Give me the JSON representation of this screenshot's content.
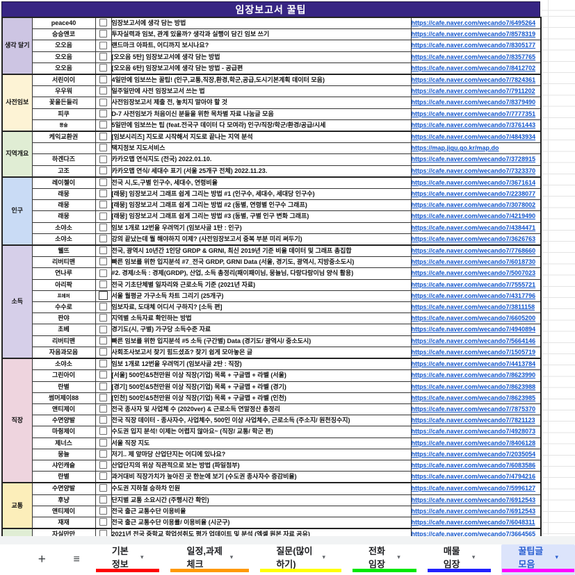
{
  "title": "임장보고서 꿀팁",
  "colors": {
    "header_bg": "#372583",
    "row_gray": "#f2f2f2",
    "highlight_yellow": "#ffff00",
    "link_blue": "#1155cc",
    "active_tab_text": "#2a5fd1",
    "active_tab_bg": "#dce4fb"
  },
  "sections": [
    {
      "label": "생각 달기",
      "bg": "#cdc5e3",
      "rows": [
        {
          "name": "peace40",
          "desc": "임장보고서에 생각 담는 방법",
          "url": "https://cafe.naver.com/wecando7/6495264",
          "gray": true
        },
        {
          "name": "승승앤코",
          "desc": "투자실력과 임보, 관계 있을까? 생각과 실행이 담긴 임보 쓰기",
          "url": "https://cafe.naver.com/wecando7/8578319",
          "gray": true
        },
        {
          "name": "오오음",
          "desc": "랜드마크 아파트, 어디까지 보시나요?",
          "url": "https://cafe.naver.com/wecando7/8305177"
        },
        {
          "name": "오오음",
          "desc": "[오오음 5탄] 임장보고서에 생각 담는 방법",
          "url": "https://cafe.naver.com/wecando7/8357765"
        },
        {
          "name": "오오음",
          "desc": "[오오음 6탄] 임장보고서에 생각 담는 방법 - 공급편",
          "url": "https://cafe.naver.com/wecando7/8412702"
        }
      ]
    },
    {
      "label": "사전임보",
      "bg": "#fdf3d5",
      "rows": [
        {
          "name": "서린이이",
          "desc": "4일만에 임보쓰는 꿀팁! (인구,교통,직장,환경,학군,공급,도시기본계획 데이터 모음)",
          "url": "https://cafe.naver.com/wecando7/7824361",
          "gray": true
        },
        {
          "name": "우우워",
          "desc": "일주일만에 사전 임장보고서 쓰는 법",
          "url": "https://cafe.naver.com/wecando7/7911202"
        },
        {
          "name": "꽃을든들리",
          "desc": "사전임장보고서 제출 전, 놓치지 말아야 할 것",
          "url": "https://cafe.naver.com/wecando7/8379490",
          "gray": true
        },
        {
          "name": "피쿠",
          "desc": "D-7 사전임보가 처음이신 분들을 위한 목차별 자료 나눔글 모음",
          "url": "https://cafe.naver.com/wecando7/7777351"
        },
        {
          "name": "묭슬",
          "desc": "5일만에 임보쓰는 팁 (feat.전국구 데이터 다 모여라) 인구/직장/학군/환경/공급/시세",
          "url": "https://cafe.naver.com/wecando7/3761443",
          "small_name": true
        }
      ]
    },
    {
      "label": "지역개요",
      "bg": "#e0edd4",
      "rows": [
        {
          "name": "케익교환권",
          "desc": "[임보시리즈] 지도로 시작해서 지도로 끝나는 지역 분석",
          "url": "https://cafe.naver.com/wecando7/4843934",
          "gray": true
        },
        {
          "name": "",
          "desc": "택지정보 지도서비스",
          "url": "https://map.jigu.go.kr/map.do"
        },
        {
          "name": "하겐다즈",
          "desc": "카카오맵 연식지도 (전국) 2022.01.10.",
          "url": "https://cafe.naver.com/wecando7/3728915",
          "yellow": true
        },
        {
          "name": "고조",
          "desc": "카카오맵 연식/ 세대수 표기 (서울 25개구 전체) 2022.11.23.",
          "url": "https://cafe.naver.com/wecando7/7323370",
          "yellow": true
        }
      ]
    },
    {
      "label": "인구",
      "bg": "#c9dbf5",
      "rows": [
        {
          "name": "레이첼이",
          "desc": "전국 시,도,구별 인구수, 세대수, 연령비율",
          "url": "https://cafe.naver.com/wecando7/3671614",
          "gray": true
        },
        {
          "name": "래뭉",
          "desc": "[래뭉] 임장보고서 그래프 쉽게 그리는 방법 #1 (인구수, 세대수, 세대당 인구수)",
          "url": "https://cafe.naver.com/wecando7/2238077"
        },
        {
          "name": "래뭉",
          "desc": "[래뭉] 임장보고서 그래프 쉽게 그리는 방법 #2 (동별, 연령별 인구수 그래프)",
          "url": "https://cafe.naver.com/wecando7/3078002"
        },
        {
          "name": "래뭉",
          "desc": "[래뭉] 임장보고서 그래프 쉽게 그리는 방법 #3 (동별, 구별 인구 변화 그래프)",
          "url": "https://cafe.naver.com/wecando7/4219490"
        },
        {
          "name": "소야소",
          "desc": "임보 1개로 12번을 우려먹기 (임보사골 1탄 : 인구)",
          "url": "https://cafe.naver.com/wecando7/4384471"
        },
        {
          "name": "소야소",
          "desc": "강의 끝났는데 뭘 해야하지 이제? (사전임장보고서 중복 부분 미리 써두기)",
          "url": "https://cafe.naver.com/wecando7/3626763"
        }
      ]
    },
    {
      "label": "소득",
      "bg": "#d6cfe9",
      "rows": [
        {
          "name": "웰뜨",
          "desc": "전국, 광역시 10년간 1인당 GRDP & GRNI, 최신 2019년 기준 비율 데이터 및 그래프 총집합",
          "url": "https://cafe.naver.com/wecando7/7768660",
          "gray": true
        },
        {
          "name": "리버티맨",
          "desc": "빠른 임보를 위한 입지분석 #7_전국 GRDP, GRNI Data (서울, 경기도, 광역시, 지방중소도시)",
          "url": "https://cafe.naver.com/wecando7/6018730"
        },
        {
          "name": "연나루",
          "desc": "#2. 경제/소득 : 경제(GRDP), 산업, 소득 총정리(패이패이님, 뭉늘님, 다랑다랑이님 양식 활용)",
          "url": "https://cafe.naver.com/wecando7/5007023"
        },
        {
          "name": "아리팍",
          "desc": "전국 기초단체별 일자리와 근로소득 기준 (2021년 자료)",
          "url": "https://cafe.naver.com/wecando7/7555721"
        },
        {
          "name": "프메퍼",
          "desc": "서울 월평균 가구소득 차트 그리기 (25개구)",
          "url": "https://cafe.naver.com/wecando7/4317796",
          "small_name": true,
          "bold_checkbox": true
        },
        {
          "name": "수수로",
          "desc": "임보자료, 도대체 어디서 구하지? [소득 편]",
          "url": "https://cafe.naver.com/wecando7/3811158"
        },
        {
          "name": "판야",
          "desc": "지역별 소득자료 확인하는 방법",
          "url": "https://cafe.naver.com/wecando7/6605200"
        },
        {
          "name": "초베",
          "desc": "경기도(시, 구별) 가구당 소득수준 자료",
          "url": "https://cafe.naver.com/wecando7/4940894"
        },
        {
          "name": "리버티맨",
          "desc": "빠른 임보를 위한 입지분석 #5 소득 (구간별) Data (경기도/ 광역시/ 중소도시)",
          "url": "https://cafe.naver.com/wecando7/5664146"
        },
        {
          "name": "자음과모음",
          "desc": "사회조사보고서 찾기 힘드셨죠? 찾기 쉽게 모아놓은 글",
          "url": "https://cafe.naver.com/wecando7/1505719"
        }
      ]
    },
    {
      "label": "직장",
      "bg": "#eed4de",
      "rows": [
        {
          "name": "소야소",
          "desc": "임보 1개로 12번을 우려먹기 (임보사골 2탄 : 직장)",
          "url": "https://cafe.naver.com/wecando7/4413784",
          "gray": true
        },
        {
          "name": "그린아이",
          "desc": "[서울] 500인&5천만원 이상 직장(기업) 목록 + 구글맵 + 라벨 (서울)",
          "url": "https://cafe.naver.com/wecando7/8623990"
        },
        {
          "name": "란별",
          "desc": "[경기] 500인&5천만원 이상 직장(기업) 목록 + 구글맵 + 라벨 (경기)",
          "url": "https://cafe.naver.com/wecando7/8623988"
        },
        {
          "name": "썸머제이88",
          "desc": "[인천] 500인&5천만원 이상 직장(기업) 목록 + 구글맵 + 라벨 (인천)",
          "url": "https://cafe.naver.com/wecando7/8623985"
        },
        {
          "name": "앤티제이",
          "desc": "전국 종사자 및 사업체 수 (2020ver) & 근로소득 연말정산 총정리",
          "url": "https://cafe.naver.com/wecando7/7875370"
        },
        {
          "name": "수면양발",
          "desc": "전국 직장 데이터 - 종사자수, 사업체수, 500인 이상 사업체수, 근로소득 (주소지/ 원천징수지)",
          "url": "https://cafe.naver.com/wecando7/7821123"
        },
        {
          "name": "마췽제이",
          "desc": "수도권 입지 분석! 이제는 어렵지 않아요~ (직장/ 교통/ 학군 편)",
          "url": "https://cafe.naver.com/wecando7/4928073"
        },
        {
          "name": "제너스",
          "desc": "서울 직장 지도",
          "url": "https://cafe.naver.com/wecando7/8406128"
        },
        {
          "name": "뭉늘",
          "desc": "저기.. 제 앞마당 산업단지는 어디에 있나요?",
          "url": "https://cafe.naver.com/wecando7/2035054"
        },
        {
          "name": "샤인캐슬",
          "desc": "산업단지의 위상 직관적으로 보는 방법 (파일첨부)",
          "url": "https://cafe.naver.com/wecando7/6083586"
        },
        {
          "name": "란별",
          "desc": "과거대비 직장가치가 높아진 곳 한눈에 보기 (수도권 종사자수 증감비율)",
          "url": "https://cafe.naver.com/wecando7/4794216"
        }
      ]
    },
    {
      "label": "교통",
      "bg": "#fceeba",
      "rows": [
        {
          "name": "수면양발",
          "desc": "수도권 지하철 승하차 인원",
          "url": "https://cafe.naver.com/wecando7/5996127",
          "gray": true
        },
        {
          "name": "후냥",
          "desc": "단지별 교통 소요시간 (주행시간 확인)",
          "url": "https://cafe.naver.com/wecando7/6912543"
        },
        {
          "name": "앤티제이",
          "desc": "전국 출근 교통수단 이용비율",
          "url": "https://cafe.naver.com/wecando7/6912543"
        },
        {
          "name": "재재",
          "desc": "전국 출근 교통수단 이용률/ 이용비율 (시군구)",
          "url": "https://cafe.naver.com/wecando7/6048311"
        }
      ]
    },
    {
      "label": "",
      "bg": "#e0edd4",
      "rows": [
        {
          "name": "자실만만",
          "desc": "2021년 전국 중학교 학업성취도 평가 업데이트 및 분석 (엑셀 원본 자료 공유)",
          "url": "https://cafe.naver.com/wecando7/3664565",
          "gray": true
        }
      ]
    }
  ],
  "tabbar": {
    "add_sheet_icon": "+",
    "all_sheets_icon": "≡",
    "dropdown_arrow": "▾",
    "tabs": [
      {
        "label": "기본정보",
        "color": "#fe0000",
        "active": false
      },
      {
        "label": "일정,과제체크",
        "color": "#ff9900",
        "active": false
      },
      {
        "label": "질문(많이하기)",
        "color": "#ffff00",
        "active": false
      },
      {
        "label": "전화임장",
        "color": "#00e700",
        "active": false
      },
      {
        "label": "매물임장",
        "color": "#2222ff",
        "active": false
      },
      {
        "label": "꿀팁글 모음",
        "color": "#ff00ff",
        "active": true
      }
    ]
  }
}
